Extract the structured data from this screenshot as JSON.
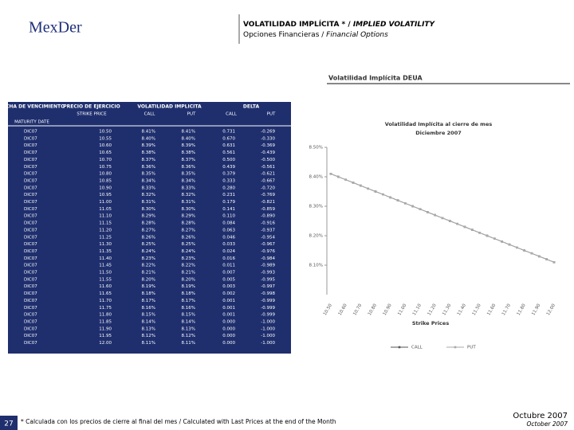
{
  "header": {
    "logo": "MexDer",
    "title_es": "VOLATILIDAD IMPLÍCITA * / ",
    "title_en": "IMPLIED VOLATILITY",
    "subtitle_es": "Opciones Financieras / ",
    "subtitle_en": "Financial Options"
  },
  "table": {
    "headers": [
      "FECHA DE VENCIMIENTO",
      "PRECIO DE EJERCICIO",
      "VOLATILIDAD IMPLICITA",
      "DELTA"
    ],
    "subheaders": [
      "MATURITY DATE",
      "STRIKE PRICE",
      "CALL",
      "PUT",
      "CALL",
      "PUT"
    ],
    "rows": [
      [
        "DIC07",
        "10.50",
        "8.41%",
        "8.41%",
        "0.731",
        "-0.269"
      ],
      [
        "DIC07",
        "10.55",
        "8.40%",
        "8.40%",
        "0.670",
        "-0.330"
      ],
      [
        "DIC07",
        "10.60",
        "8.39%",
        "8.39%",
        "0.631",
        "-0.369"
      ],
      [
        "DIC07",
        "10.65",
        "8.38%",
        "8.38%",
        "0.561",
        "-0.439"
      ],
      [
        "DIC07",
        "10.70",
        "8.37%",
        "8.37%",
        "0.500",
        "-0.500"
      ],
      [
        "DIC07",
        "10.75",
        "8.36%",
        "8.36%",
        "0.439",
        "-0.561"
      ],
      [
        "DIC07",
        "10.80",
        "8.35%",
        "8.35%",
        "0.379",
        "-0.621"
      ],
      [
        "DIC07",
        "10.85",
        "8.34%",
        "8.34%",
        "0.333",
        "-0.667"
      ],
      [
        "DIC07",
        "10.90",
        "8.33%",
        "8.33%",
        "0.280",
        "-0.720"
      ],
      [
        "DIC07",
        "10.95",
        "8.32%",
        "8.32%",
        "0.231",
        "-0.769"
      ],
      [
        "DIC07",
        "11.00",
        "8.31%",
        "8.31%",
        "0.179",
        "-0.821"
      ],
      [
        "DIC07",
        "11.05",
        "8.30%",
        "8.30%",
        "0.141",
        "-0.859"
      ],
      [
        "DIC07",
        "11.10",
        "8.29%",
        "8.29%",
        "0.110",
        "-0.890"
      ],
      [
        "DIC07",
        "11.15",
        "8.28%",
        "8.28%",
        "0.084",
        "-0.916"
      ],
      [
        "DIC07",
        "11.20",
        "8.27%",
        "8.27%",
        "0.063",
        "-0.937"
      ],
      [
        "DIC07",
        "11.25",
        "8.26%",
        "8.26%",
        "0.046",
        "-0.954"
      ],
      [
        "DIC07",
        "11.30",
        "8.25%",
        "8.25%",
        "0.033",
        "-0.967"
      ],
      [
        "DIC07",
        "11.35",
        "8.24%",
        "8.24%",
        "0.024",
        "-0.976"
      ],
      [
        "DIC07",
        "11.40",
        "8.23%",
        "8.23%",
        "0.016",
        "-0.984"
      ],
      [
        "DIC07",
        "11.45",
        "8.22%",
        "8.22%",
        "0.011",
        "-0.989"
      ],
      [
        "DIC07",
        "11.50",
        "8.21%",
        "8.21%",
        "0.007",
        "-0.993"
      ],
      [
        "DIC07",
        "11.55",
        "8.20%",
        "8.20%",
        "0.005",
        "-0.995"
      ],
      [
        "DIC07",
        "11.60",
        "8.19%",
        "8.19%",
        "0.003",
        "-0.997"
      ],
      [
        "DIC07",
        "11.65",
        "8.18%",
        "8.18%",
        "0.002",
        "-0.998"
      ],
      [
        "DIC07",
        "11.70",
        "8.17%",
        "8.17%",
        "0.001",
        "-0.999"
      ],
      [
        "DIC07",
        "11.75",
        "8.16%",
        "8.16%",
        "0.001",
        "-0.999"
      ],
      [
        "DIC07",
        "11.80",
        "8.15%",
        "8.15%",
        "0.001",
        "-0.999"
      ],
      [
        "DIC07",
        "11.85",
        "8.14%",
        "8.14%",
        "0.000",
        "-1.000"
      ],
      [
        "DIC07",
        "11.90",
        "8.13%",
        "8.13%",
        "0.000",
        "-1.000"
      ],
      [
        "DIC07",
        "11.95",
        "8.12%",
        "8.12%",
        "0.000",
        "-1.000"
      ],
      [
        "DIC07",
        "12.00",
        "8.11%",
        "8.11%",
        "0.000",
        "-1.000"
      ]
    ]
  },
  "chart_heading": "Volatilidad Implícita DEUA",
  "chart_data": {
    "type": "line",
    "title": "Volatilidad Implícita al cierre de mes",
    "subtitle": "Diciembre 2007",
    "x_label": "Strike Prices",
    "categories": [
      "10.50",
      null,
      "10.60",
      null,
      "10.70",
      null,
      "10.80",
      null,
      "10.90",
      null,
      "11.00",
      null,
      "11.10",
      null,
      "11.20",
      null,
      "11.30",
      null,
      "11.40",
      null,
      "11.50",
      null,
      "11.60",
      null,
      "11.70",
      null,
      "11.80",
      null,
      "11.90",
      null,
      "12.00"
    ],
    "series": [
      {
        "name": "CALL",
        "color": "#555555",
        "values": [
          8.41,
          8.4,
          8.39,
          8.38,
          8.37,
          8.36,
          8.35,
          8.34,
          8.33,
          8.32,
          8.31,
          8.3,
          8.29,
          8.28,
          8.27,
          8.26,
          8.25,
          8.24,
          8.23,
          8.22,
          8.21,
          8.2,
          8.19,
          8.18,
          8.17,
          8.16,
          8.15,
          8.14,
          8.13,
          8.12,
          8.11
        ]
      },
      {
        "name": "PUT",
        "color": "#aaaaaa",
        "values": [
          8.41,
          8.4,
          8.39,
          8.38,
          8.37,
          8.36,
          8.35,
          8.34,
          8.33,
          8.32,
          8.31,
          8.3,
          8.29,
          8.28,
          8.27,
          8.26,
          8.25,
          8.24,
          8.23,
          8.22,
          8.21,
          8.2,
          8.19,
          8.18,
          8.17,
          8.16,
          8.15,
          8.14,
          8.13,
          8.12,
          8.11
        ]
      }
    ],
    "ylim": [
      8.0,
      8.5
    ],
    "yticks": [
      {
        "value": 8.1,
        "label": "8.10%"
      },
      {
        "value": 8.2,
        "label": "8.20%"
      },
      {
        "value": 8.3,
        "label": "8.30%"
      },
      {
        "value": 8.4,
        "label": "8.40%"
      },
      {
        "value": 8.5,
        "label": "8.50%"
      }
    ]
  },
  "footer": {
    "page": "27",
    "note": "* Calculada con los precios de cierre al final del mes / Calculated with Last Prices at the end of the Month",
    "date_es": "Octubre 2007",
    "date_en": "October 2007"
  }
}
